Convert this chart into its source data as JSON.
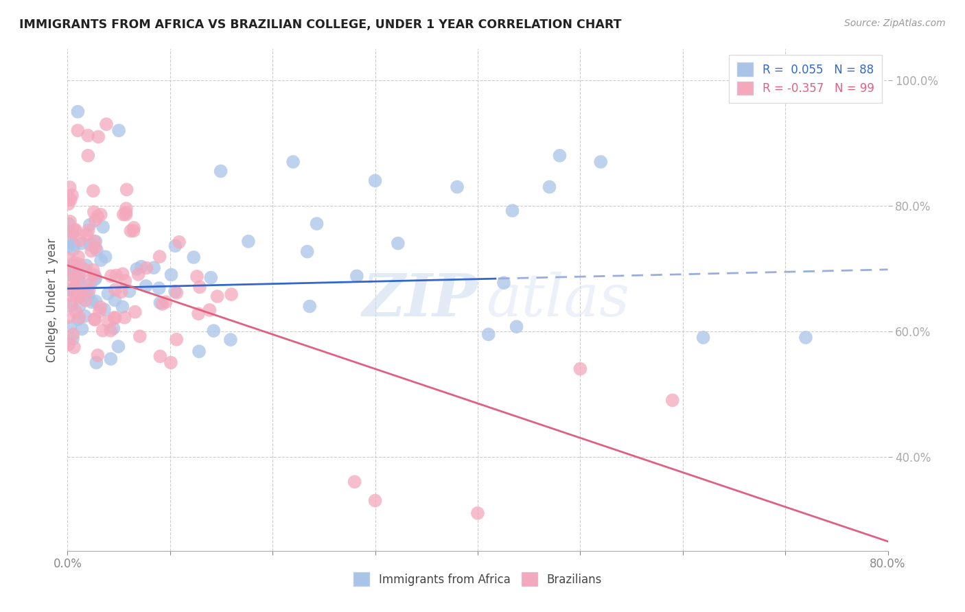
{
  "title": "IMMIGRANTS FROM AFRICA VS BRAZILIAN COLLEGE, UNDER 1 YEAR CORRELATION CHART",
  "source": "Source: ZipAtlas.com",
  "ylabel": "College, Under 1 year",
  "legend_blue_label": "R =  0.055   N = 88",
  "legend_pink_label": "R = -0.357   N = 99",
  "legend_bottom_blue": "Immigrants from Africa",
  "legend_bottom_pink": "Brazilians",
  "blue_color": "#aac4e8",
  "pink_color": "#f4a8bc",
  "blue_line_color": "#3366cc",
  "pink_line_color": "#e06080",
  "dashed_line_color": "#99aedd",
  "watermark_zip": "ZIP",
  "watermark_atlas": "atlas",
  "x_min": 0.0,
  "x_max": 0.8,
  "y_min": 0.25,
  "y_max": 1.05,
  "blue_intercept": 0.668,
  "blue_slope": 0.038,
  "pink_intercept": 0.705,
  "pink_slope": -0.55,
  "dashed_split": 0.42,
  "seed": 42
}
